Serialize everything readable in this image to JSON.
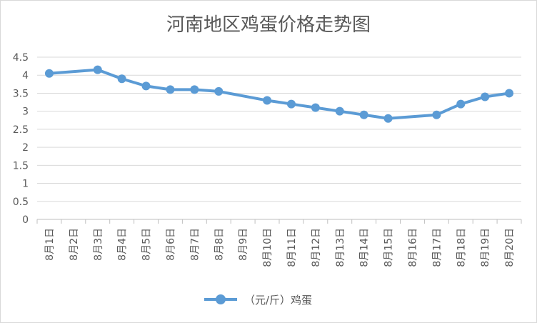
{
  "chart_data": {
    "type": "line",
    "title": "河南地区鸡蛋价格走势图",
    "categories": [
      "8月1日",
      "8月2日",
      "8月3日",
      "8月4日",
      "8月5日",
      "8月6日",
      "8月7日",
      "8月8日",
      "8月9日",
      "8月10日",
      "8月11日",
      "8月12日",
      "8月13日",
      "8月14日",
      "8月15日",
      "8月16日",
      "8月17日",
      "8月18日",
      "8月19日",
      "8月20日"
    ],
    "series": [
      {
        "name": "（元/斤）鸡蛋",
        "color": "#5b9bd5",
        "values": [
          4.05,
          null,
          4.15,
          3.9,
          3.7,
          3.6,
          3.6,
          3.55,
          null,
          3.3,
          3.2,
          3.1,
          3.0,
          2.9,
          2.8,
          null,
          2.9,
          3.2,
          3.4,
          3.5
        ]
      }
    ],
    "yticks": [
      "0",
      "0.5",
      "1",
      "1.5",
      "2",
      "2.5",
      "3",
      "3.5",
      "4",
      "4.5"
    ],
    "ylim": [
      0,
      4.5
    ],
    "grid": true,
    "legend_position": "bottom"
  }
}
